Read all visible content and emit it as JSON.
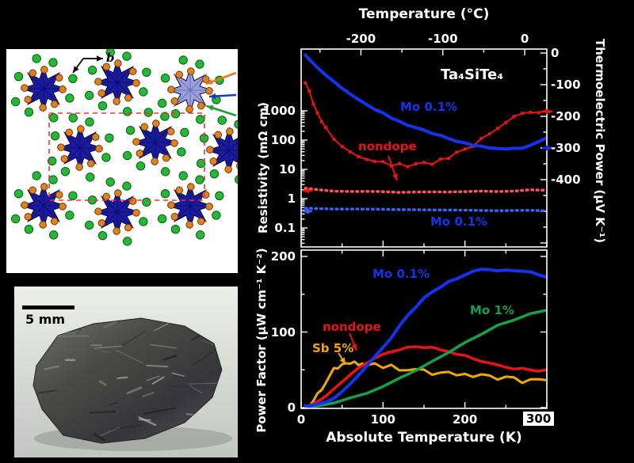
{
  "colors": {
    "blue": "#1334ee",
    "red": "#e81414",
    "green": "#17a04b",
    "orange": "#f2a800",
    "white": "#ffffff"
  },
  "structure_panel": {
    "axis_label_b": "b",
    "atom_colors": {
      "cluster_blue": "#1b1b9f",
      "te_green": "#25b834",
      "ta_orange": "#e08020"
    },
    "pointer_colors": {
      "orange": "#e87722",
      "blue": "#2233cc",
      "green": "#18a035"
    },
    "unit_cell_color": "#ee3333"
  },
  "photo_panel": {
    "scale_bar_label": "5 mm"
  },
  "chart_data": [
    {
      "id": "resistivity-thermopower",
      "type": "line",
      "title": "Ta₄SiTe₄",
      "x_top": {
        "label": "Temperature  (°C)",
        "ticks": [
          "-200",
          "-100",
          "0"
        ],
        "range_c": [
          -273,
          27
        ]
      },
      "x_bottom": {
        "unit": "K",
        "range": [
          0,
          300
        ]
      },
      "y_left": {
        "label": "Resistivity (mΩ cm)",
        "scale": "log",
        "ticks": [
          "1000",
          "100",
          "10",
          "1",
          "0.1"
        ]
      },
      "y_right": {
        "label": "Thermoelectric Power (μV K⁻¹)",
        "ticks": [
          "0",
          "-100",
          "-200",
          "-300",
          "-400"
        ],
        "range": [
          0,
          -400
        ]
      },
      "annotations": {
        "mo01_tep": "Mo 0.1%",
        "nondope": "nondope",
        "mo01_res": "Mo 0.1%"
      },
      "series": [
        {
          "name": "nondope thermoelectric power",
          "axis": "right",
          "color": "#e81414",
          "style": "markers",
          "width": 2,
          "noise": 2.5,
          "points": [
            [
              5,
              -90
            ],
            [
              10,
              -125
            ],
            [
              15,
              -158
            ],
            [
              20,
              -188
            ],
            [
              25,
              -213
            ],
            [
              30,
              -234
            ],
            [
              40,
              -266
            ],
            [
              50,
              -290
            ],
            [
              60,
              -308
            ],
            [
              70,
              -322
            ],
            [
              80,
              -333
            ],
            [
              90,
              -341
            ],
            [
              100,
              -347
            ],
            [
              110,
              -351
            ],
            [
              120,
              -354
            ],
            [
              130,
              -355
            ],
            [
              140,
              -354
            ],
            [
              150,
              -351
            ],
            [
              160,
              -346
            ],
            [
              170,
              -339
            ],
            [
              180,
              -330
            ],
            [
              190,
              -318
            ],
            [
              200,
              -305
            ],
            [
              210,
              -290
            ],
            [
              220,
              -273
            ],
            [
              230,
              -255
            ],
            [
              240,
              -237
            ],
            [
              250,
              -220
            ],
            [
              260,
              -206
            ],
            [
              270,
              -196
            ],
            [
              280,
              -190
            ],
            [
              290,
              -187
            ],
            [
              300,
              -186
            ]
          ]
        },
        {
          "name": "Mo 0.1% thermoelectric power",
          "axis": "right",
          "color": "#1334ee",
          "style": "solid",
          "width": 4,
          "noise": 1,
          "points": [
            [
              5,
              -8
            ],
            [
              10,
              -20
            ],
            [
              20,
              -45
            ],
            [
              30,
              -68
            ],
            [
              40,
              -90
            ],
            [
              50,
              -110
            ],
            [
              60,
              -129
            ],
            [
              70,
              -146
            ],
            [
              80,
              -162
            ],
            [
              90,
              -177
            ],
            [
              100,
              -191
            ],
            [
              110,
              -204
            ],
            [
              120,
              -216
            ],
            [
              130,
              -227
            ],
            [
              140,
              -237
            ],
            [
              150,
              -246
            ],
            [
              160,
              -254
            ],
            [
              170,
              -262
            ],
            [
              180,
              -270
            ],
            [
              190,
              -277
            ],
            [
              200,
              -284
            ],
            [
              210,
              -290
            ],
            [
              220,
              -295
            ],
            [
              230,
              -299
            ],
            [
              240,
              -302
            ],
            [
              250,
              -304
            ],
            [
              260,
              -303
            ],
            [
              270,
              -299
            ],
            [
              280,
              -292
            ],
            [
              290,
              -281
            ],
            [
              300,
              -268
            ]
          ]
        },
        {
          "name": "nondope resistivity",
          "axis": "left",
          "color": "#ff5555",
          "style": "dotted",
          "width": 3.5,
          "noise": 0.7,
          "points": [
            [
              5,
              2.3
            ],
            [
              20,
              2.0
            ],
            [
              40,
              1.85
            ],
            [
              60,
              1.75
            ],
            [
              80,
              1.7
            ],
            [
              100,
              1.68
            ],
            [
              120,
              1.66
            ],
            [
              140,
              1.66
            ],
            [
              160,
              1.68
            ],
            [
              180,
              1.7
            ],
            [
              200,
              1.74
            ],
            [
              220,
              1.78
            ],
            [
              240,
              1.83
            ],
            [
              260,
              1.88
            ],
            [
              280,
              1.92
            ],
            [
              300,
              1.95
            ]
          ]
        },
        {
          "name": "Mo 0.1% resistivity",
          "axis": "left",
          "color": "#3366ff",
          "style": "dotted",
          "width": 3.5,
          "noise": 0.5,
          "points": [
            [
              5,
              0.46
            ],
            [
              40,
              0.44
            ],
            [
              80,
              0.43
            ],
            [
              120,
              0.42
            ],
            [
              160,
              0.41
            ],
            [
              200,
              0.41
            ],
            [
              240,
              0.4
            ],
            [
              280,
              0.39
            ],
            [
              300,
              0.39
            ]
          ]
        }
      ]
    },
    {
      "id": "power-factor",
      "type": "line",
      "x": {
        "label": "Absolute Temperature  (K)",
        "ticks": [
          "0",
          "100",
          "200",
          "300"
        ],
        "range": [
          0,
          300
        ]
      },
      "y": {
        "label": "Power Factor (μW cm⁻¹ K⁻²)",
        "ticks": [
          "0",
          "100",
          "200"
        ],
        "range": [
          0,
          209
        ]
      },
      "annotations": {
        "mo01": "Mo 0.1%",
        "mo1": "Mo 1%",
        "nondope": "nondope",
        "sb5": "Sb 5%"
      },
      "series": [
        {
          "name": "Sb 5%",
          "color": "#f2a800",
          "style": "solid",
          "width": 3,
          "noise": 3.5,
          "points": [
            [
              5,
              1
            ],
            [
              10,
              4
            ],
            [
              15,
              10
            ],
            [
              20,
              18
            ],
            [
              25,
              27
            ],
            [
              30,
              36
            ],
            [
              35,
              44
            ],
            [
              40,
              50
            ],
            [
              45,
              55
            ],
            [
              50,
              58
            ],
            [
              55,
              61
            ],
            [
              60,
              56
            ],
            [
              65,
              60
            ],
            [
              70,
              55
            ],
            [
              75,
              58
            ],
            [
              80,
              54
            ],
            [
              90,
              57
            ],
            [
              100,
              53
            ],
            [
              110,
              55
            ],
            [
              120,
              51
            ],
            [
              130,
              52
            ],
            [
              140,
              49
            ],
            [
              150,
              50
            ],
            [
              160,
              47
            ],
            [
              170,
              47
            ],
            [
              180,
              45
            ],
            [
              190,
              44
            ],
            [
              200,
              43
            ],
            [
              210,
              42
            ],
            [
              220,
              41
            ],
            [
              230,
              40
            ],
            [
              240,
              39
            ],
            [
              250,
              38
            ],
            [
              260,
              37
            ],
            [
              270,
              36
            ],
            [
              280,
              36
            ],
            [
              290,
              35
            ],
            [
              300,
              35
            ]
          ]
        },
        {
          "name": "nondope",
          "color": "#e81414",
          "style": "solid",
          "width": 3.5,
          "noise": 1.2,
          "points": [
            [
              5,
              1
            ],
            [
              10,
              3
            ],
            [
              20,
              8
            ],
            [
              30,
              16
            ],
            [
              40,
              25
            ],
            [
              50,
              35
            ],
            [
              60,
              44
            ],
            [
              70,
              52
            ],
            [
              80,
              59
            ],
            [
              90,
              65
            ],
            [
              100,
              70
            ],
            [
              110,
              74
            ],
            [
              120,
              77
            ],
            [
              130,
              79
            ],
            [
              140,
              80
            ],
            [
              150,
              80
            ],
            [
              160,
              79
            ],
            [
              170,
              77
            ],
            [
              180,
              74
            ],
            [
              190,
              71
            ],
            [
              200,
              68
            ],
            [
              210,
              64
            ],
            [
              220,
              61
            ],
            [
              230,
              58
            ],
            [
              240,
              56
            ],
            [
              250,
              54
            ],
            [
              260,
              52
            ],
            [
              270,
              51
            ],
            [
              280,
              50
            ],
            [
              290,
              49
            ],
            [
              300,
              49
            ]
          ]
        },
        {
          "name": "Mo 1%",
          "color": "#17a04b",
          "style": "solid",
          "width": 3.5,
          "noise": 1.2,
          "points": [
            [
              5,
              0.5
            ],
            [
              20,
              2
            ],
            [
              40,
              6
            ],
            [
              60,
              12
            ],
            [
              80,
              19
            ],
            [
              100,
              28
            ],
            [
              120,
              38
            ],
            [
              140,
              49
            ],
            [
              160,
              61
            ],
            [
              180,
              73
            ],
            [
              200,
              85
            ],
            [
              220,
              97
            ],
            [
              240,
              108
            ],
            [
              260,
              117
            ],
            [
              280,
              124
            ],
            [
              300,
              129
            ]
          ]
        },
        {
          "name": "Mo 0.1%",
          "color": "#1334ee",
          "style": "solid",
          "width": 4,
          "noise": 2,
          "points": [
            [
              5,
              1
            ],
            [
              10,
              2
            ],
            [
              20,
              5
            ],
            [
              30,
              9
            ],
            [
              40,
              14
            ],
            [
              50,
              21
            ],
            [
              60,
              30
            ],
            [
              70,
              41
            ],
            [
              80,
              53
            ],
            [
              90,
              66
            ],
            [
              100,
              80
            ],
            [
              110,
              94
            ],
            [
              120,
              108
            ],
            [
              130,
              121
            ],
            [
              140,
              133
            ],
            [
              150,
              144
            ],
            [
              160,
              153
            ],
            [
              170,
              161
            ],
            [
              180,
              167
            ],
            [
              190,
              172
            ],
            [
              200,
              176
            ],
            [
              210,
              179
            ],
            [
              220,
              181
            ],
            [
              230,
              182
            ],
            [
              240,
              183
            ],
            [
              250,
              183
            ],
            [
              260,
              182
            ],
            [
              270,
              181
            ],
            [
              280,
              179
            ],
            [
              290,
              176
            ],
            [
              300,
              174
            ]
          ]
        }
      ]
    }
  ]
}
